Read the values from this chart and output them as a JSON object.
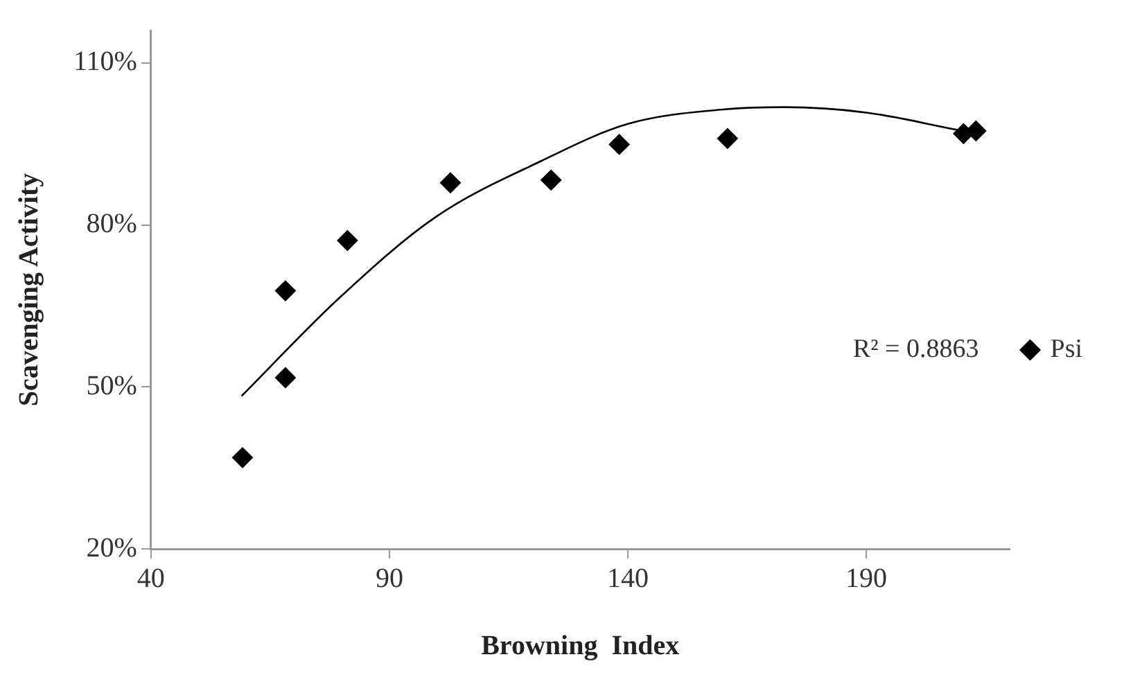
{
  "chart_data": {
    "type": "scatter",
    "xlabel": "Browning  Index",
    "ylabel": "Scavenging Activity",
    "xlim": [
      40,
      220
    ],
    "xticks": [
      40,
      90,
      140,
      190
    ],
    "ylim": [
      20,
      116
    ],
    "yticks": [
      {
        "value": 20,
        "label": "20%"
      },
      {
        "value": 50,
        "label": "50%"
      },
      {
        "value": 80,
        "label": "80%"
      },
      {
        "value": 110,
        "label": "110%"
      }
    ],
    "grid": false,
    "legend": "right",
    "marker": "diamond",
    "annotations": [
      "R² = 0.8863"
    ],
    "series": [
      {
        "name": "Psi",
        "color": "#000000",
        "x": [
          59.2,
          68.2,
          68.2,
          81.2,
          102.8,
          123.9,
          138.2,
          160.9,
          210.4,
          213
        ],
        "values": [
          36.9,
          67.8,
          51.7,
          77.1,
          87.8,
          88.3,
          94.9,
          96,
          96.9,
          97.4
        ]
      },
      {
        "type": "line",
        "color": "#000000",
        "marker": "none",
        "x": [
          59,
          79.4,
          99.6,
          122,
          140,
          160.3,
          173,
          190,
          210.3,
          213
        ],
        "values": [
          48.3,
          66.4,
          81.4,
          91.9,
          98.7,
          101.4,
          101.8,
          100.8,
          97.4,
          97
        ]
      }
    ]
  }
}
